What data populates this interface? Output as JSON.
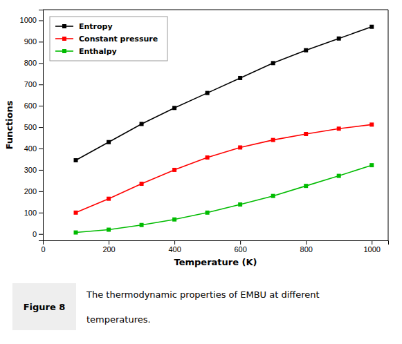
{
  "chart_data": {
    "type": "line",
    "x": [
      100,
      200,
      300,
      400,
      500,
      600,
      700,
      800,
      900,
      1000
    ],
    "series": [
      {
        "name": "Entropy",
        "color": "#000000",
        "marker": "square",
        "line_style": "solid",
        "values": [
          345,
          430,
          515,
          590,
          660,
          730,
          800,
          860,
          915,
          970
        ]
      },
      {
        "name": "Constant pressure",
        "color": "#ff0000",
        "marker": "square",
        "line_style": "solid",
        "values": [
          100,
          165,
          235,
          300,
          358,
          405,
          440,
          468,
          493,
          512
        ]
      },
      {
        "name": "Enthalpy",
        "color": "#00bb00",
        "marker": "square",
        "line_style": "solid",
        "values": [
          7,
          20,
          42,
          68,
          100,
          138,
          178,
          225,
          272,
          322
        ]
      }
    ],
    "x_label": "Temperature (K)",
    "y_label": "Functions",
    "xlim": [
      0,
      1050
    ],
    "ylim": [
      -30,
      1050
    ],
    "xticks": [
      0,
      200,
      400,
      600,
      800,
      1000
    ],
    "yticks": [
      0,
      100,
      200,
      300,
      400,
      500,
      600,
      700,
      800,
      900,
      1000
    ],
    "legend": "upper left",
    "grid": false,
    "annotations": [
      "Figure 8",
      "The thermodynamic properties of EMBU at different",
      "temperatures."
    ]
  }
}
